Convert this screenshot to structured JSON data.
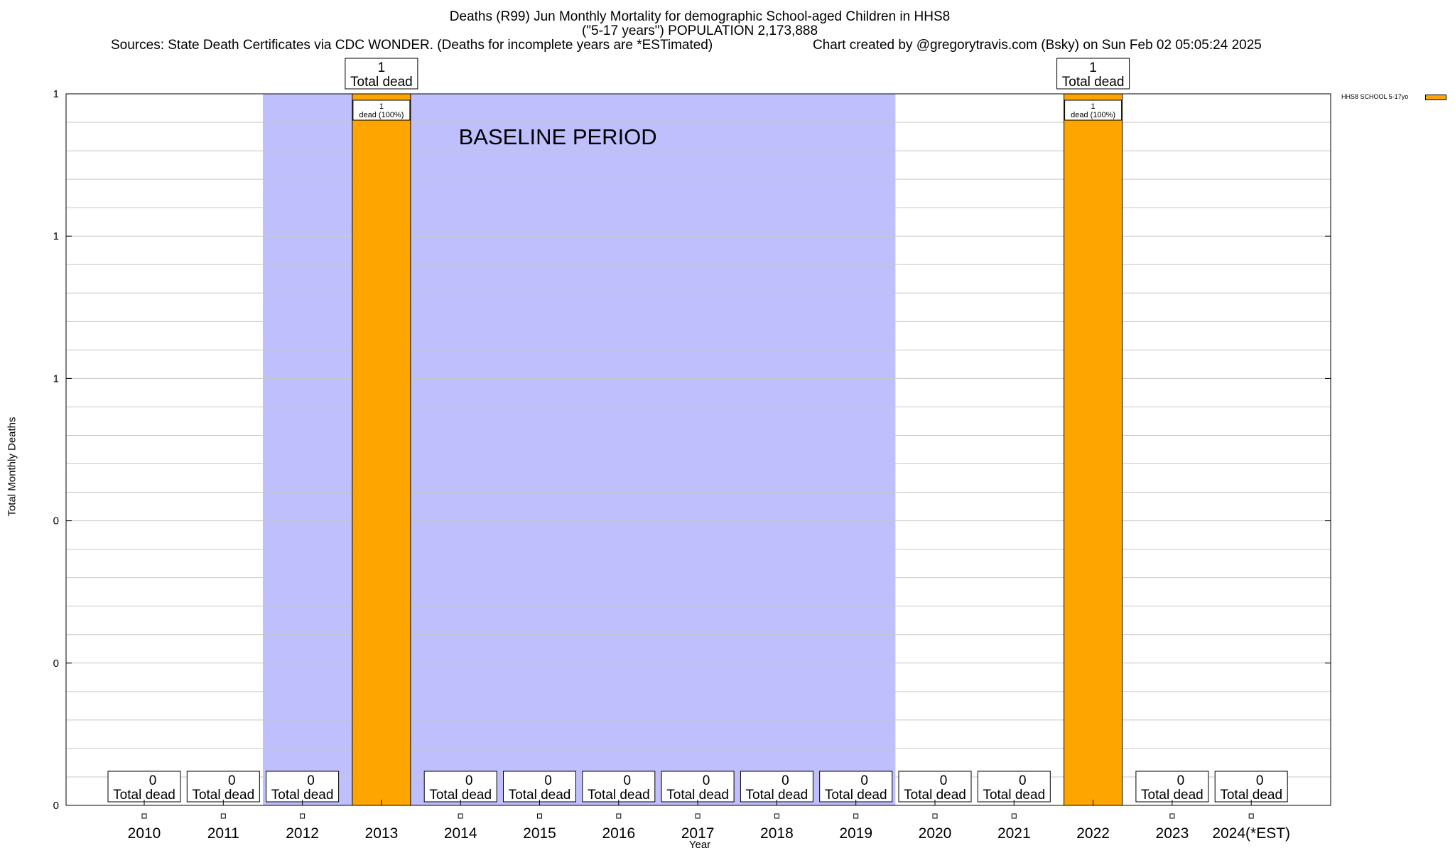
{
  "header": {
    "title_line1": "Deaths (R99) Jun Monthly Mortality for demographic School-aged Children in HHS8",
    "title_line2": "(\"5-17 years\") POPULATION 2,173,888",
    "sources": "Sources: State Death Certificates via CDC WONDER. (Deaths for incomplete years are *ESTimated)",
    "credit": "Chart created by @gregorytravis.com (Bsky) on Sun Feb 02 05:05:24 2025"
  },
  "chart_data": {
    "type": "bar",
    "categories": [
      "2010",
      "2011",
      "2012",
      "2013",
      "2014",
      "2015",
      "2016",
      "2017",
      "2018",
      "2019",
      "2020",
      "2021",
      "2022",
      "2023",
      "2024(*EST)"
    ],
    "series": [
      {
        "name": "HHS8 SCHOOL 5-17yo",
        "color": "#ffa500",
        "values": [
          0,
          0,
          0,
          1,
          0,
          0,
          0,
          0,
          0,
          0,
          0,
          0,
          1,
          0,
          0
        ]
      }
    ],
    "total_label": "Total dead",
    "inner_label": "dead (100%)",
    "inner_count": "1",
    "xlabel": "Year",
    "ylabel": "Total Monthly Deaths",
    "ylim": [
      0,
      1
    ],
    "ytick_labels": [
      "0",
      "0",
      "0",
      "1",
      "1",
      "1"
    ],
    "grid": true,
    "legend_position": "top-right",
    "baseline": {
      "label": "BASELINE PERIOD",
      "from": "2012",
      "to": "2019",
      "color": "#bfbffe"
    }
  }
}
